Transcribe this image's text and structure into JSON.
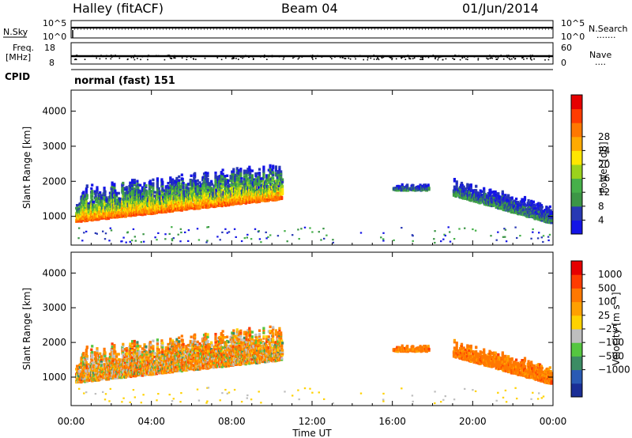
{
  "header": {
    "station": "Halley (fitACF)",
    "beam": "Beam 04",
    "date": "01/Jun/2014"
  },
  "nsky_panel": {
    "left_label": "N.Sky",
    "right_label": "N.Search",
    "left_ticks": [
      "10^5",
      "10^0"
    ],
    "right_ticks": [
      "10^5",
      "10^0"
    ],
    "right_dots": "......."
  },
  "freq_panel": {
    "left_label_1": "Freq.",
    "left_label_2": "[MHz]",
    "right_label": "Nave",
    "left_ticks": [
      "18",
      "8"
    ],
    "right_ticks": [
      "60",
      "0"
    ],
    "right_dots": "...."
  },
  "cpid": {
    "label": "CPID",
    "mode": "normal (fast) 151"
  },
  "chart_data": [
    {
      "type": "heatmap",
      "name": "Power",
      "ylabel": "Slant Range [km]",
      "ylim": [
        180,
        4600
      ],
      "y_ticks": [
        "1000",
        "2000",
        "3000",
        "4000"
      ],
      "colorbar_label": "Power [dB]",
      "colorbar_ticks": [
        "4",
        "8",
        "12",
        "16",
        "20",
        "24",
        "28"
      ],
      "colorbar_colors": [
        "#1414e6",
        "#2838b4",
        "#3c9646",
        "#46b04a",
        "#9bd21c",
        "#ffe600",
        "#ffaa00",
        "#ff7800",
        "#ff3c00",
        "#e60000"
      ],
      "scatter_regions": [
        {
          "t0": 0.2,
          "t1": 10.5,
          "r0_start": 850,
          "r0_end": 1500,
          "width": 700,
          "peak_dB": 26
        },
        {
          "t0": 16.0,
          "t1": 17.8,
          "r0_start": 1750,
          "r0_end": 1750,
          "width": 120,
          "peak_dB": 6
        },
        {
          "t0": 19.0,
          "t1": 23.9,
          "r0_start": 1600,
          "r0_end": 800,
          "width": 350,
          "peak_dB": 8
        }
      ]
    },
    {
      "type": "heatmap",
      "name": "Velocity",
      "ylabel": "Slant Range [km]",
      "ylim": [
        180,
        4600
      ],
      "y_ticks": [
        "1000",
        "2000",
        "3000",
        "4000"
      ],
      "colorbar_label": "Velocity [m s⁻¹]",
      "colorbar_ticks": [
        "1000",
        "500",
        "100",
        "25",
        "−25",
        "−100",
        "−500",
        "−1000"
      ],
      "colorbar_colors": [
        "#1a2e96",
        "#2a5ab4",
        "#3c8c64",
        "#55c640",
        "#bebebe",
        "#ffd200",
        "#ffa000",
        "#ff7800",
        "#ff3c00",
        "#e60000"
      ],
      "xlabel": "Time UT",
      "x_ticks": [
        "00:00",
        "04:00",
        "08:00",
        "12:00",
        "16:00",
        "20:00",
        "00:00"
      ],
      "xlim_hours": [
        0,
        24
      ]
    }
  ]
}
